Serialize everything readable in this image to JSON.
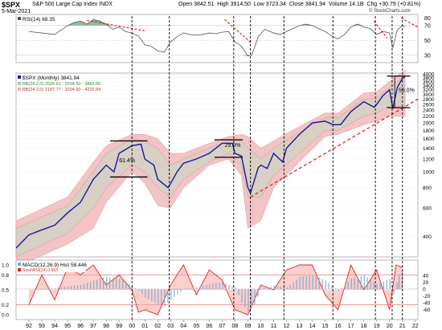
{
  "header": {
    "symbol": "$SPX",
    "name": "S&P 500 Large Cap Index",
    "exchange": "INDX",
    "date": "5-Mar-2021",
    "open_label": "Open",
    "open": "3842.51",
    "high_label": "High",
    "high": "3914.50",
    "low_label": "Low",
    "low": "3723.34",
    "close_label": "Close",
    "close": "3841.94",
    "volume_label": "Volume",
    "volume": "14.1B",
    "chg_label": "Chg",
    "chg": "+30.79 (+0.81%)",
    "watermark": "© StockCharts.com"
  },
  "colors": {
    "price": "#1a1a9c",
    "bb_fill": "#d8cfc5",
    "bb_edge": "#f2c4c6",
    "bb_line": "#e07b84",
    "trend_red": "#e0261c",
    "rsi_fill": "#7fb08a",
    "macd_hist": "#79a8d0",
    "stoch": "#e0261c",
    "stoch_fill": "#f6a7a3"
  },
  "chart_data": [
    {
      "type": "line",
      "panel": "RSI",
      "legend": "RSI(14) 68.35",
      "x_unit": "year",
      "series": [
        {
          "name": "RSI(14)",
          "x": [
            1992,
            1993,
            1994,
            1995,
            1995.5,
            1996,
            1996.5,
            1997,
            1997.5,
            1998,
            1998.5,
            1999,
            1999.5,
            2000,
            2000.5,
            2001,
            2001.5,
            2002,
            2002.5,
            2003,
            2003.5,
            2004,
            2004.5,
            2005,
            2005.5,
            2006,
            2006.5,
            2007,
            2007.5,
            2008,
            2008.5,
            2009,
            2009.3,
            2009.8,
            2010.3,
            2011,
            2011.5,
            2012,
            2013,
            2013.5,
            2014,
            2014.5,
            2015,
            2015.5,
            2016,
            2016.5,
            2017,
            2017.5,
            2018,
            2018.5,
            2019,
            2019.5,
            2020,
            2020.25,
            2020.6,
            2021,
            2021.2
          ],
          "values": [
            62,
            60,
            58,
            70,
            74,
            76,
            72,
            78,
            76,
            72,
            65,
            68,
            62,
            60,
            56,
            44,
            42,
            36,
            34,
            48,
            55,
            60,
            58,
            57,
            58,
            60,
            59,
            61,
            62,
            48,
            42,
            29,
            30,
            55,
            65,
            60,
            58,
            62,
            70,
            72,
            70,
            66,
            62,
            56,
            52,
            58,
            68,
            72,
            68,
            66,
            58,
            62,
            60,
            40,
            64,
            70,
            68
          ]
        }
      ],
      "ticks": [
        30,
        50,
        70,
        80
      ]
    },
    {
      "type": "line",
      "panel": "Price",
      "legend": "$SPX (Monthly) 3841.94",
      "bb_legend_1": "BB(24,2.0) 2526.61 - 3204.30 - 3882.00",
      "bb_legend_2": "BB(24,3.0) 2187.77 - 3204.30 - 4220.84",
      "annotations": [
        "61.4%",
        "29.0%",
        "56.0%"
      ],
      "x_unit": "year",
      "series": [
        {
          "name": "$SPX (Monthly)",
          "x": [
            1991.0,
            1992,
            1993,
            1994,
            1995,
            1996,
            1997,
            1998,
            1998.6,
            1999,
            2000,
            2000.7,
            2001,
            2001.7,
            2002,
            2002.8,
            2003,
            2003.5,
            2004,
            2005,
            2006,
            2007,
            2007.8,
            2008,
            2008.5,
            2009.0,
            2009.2,
            2009.8,
            2010,
            2010.5,
            2011,
            2011.7,
            2012,
            2013,
            2014,
            2015,
            2015.6,
            2016,
            2016.2,
            2017,
            2018,
            2018.8,
            2019,
            2019.5,
            2020,
            2020.25,
            2020.6,
            2021,
            2021.2
          ],
          "values": [
            340,
            410,
            440,
            470,
            560,
            650,
            900,
            1100,
            1000,
            1300,
            1450,
            1480,
            1200,
            1100,
            900,
            800,
            850,
            1000,
            1130,
            1200,
            1300,
            1500,
            1500,
            1300,
            1250,
            800,
            740,
            1060,
            1100,
            1050,
            1300,
            1150,
            1400,
            1700,
            2000,
            2050,
            1950,
            1950,
            1950,
            2350,
            2700,
            2500,
            2600,
            2950,
            3200,
            2450,
            3300,
            3750,
            3840
          ]
        },
        {
          "name": "BB(24,2.0) upper",
          "x": [
            1991,
            1995,
            1997,
            1998,
            2000,
            2001,
            2002,
            2003,
            2004,
            2006,
            2007.5,
            2008.5,
            2009,
            2010,
            2011,
            2013,
            2015,
            2016,
            2018,
            2019,
            2020,
            2021.2
          ],
          "values": [
            450,
            620,
            1000,
            1300,
            1600,
            1550,
            1400,
            1100,
            1200,
            1400,
            1560,
            1550,
            1400,
            1200,
            1400,
            1750,
            2150,
            2150,
            2800,
            2850,
            3300,
            3880
          ]
        },
        {
          "name": "BB(24,2.0) lower",
          "x": [
            1991,
            1995,
            1997,
            1998,
            2000,
            2001,
            2002,
            2003,
            2004,
            2006,
            2007.5,
            2008.5,
            2009,
            2010,
            2011,
            2013,
            2015,
            2016,
            2018,
            2019,
            2020,
            2021.2
          ],
          "values": [
            300,
            420,
            600,
            800,
            1100,
            1000,
            800,
            700,
            900,
            1150,
            1300,
            1100,
            700,
            700,
            950,
            1300,
            1800,
            1800,
            2200,
            2300,
            2550,
            2530
          ]
        },
        {
          "name": "BB(24,3.0) upper",
          "x": [
            1991,
            1995,
            1997,
            1998,
            2000,
            2001,
            2002,
            2003,
            2004,
            2006,
            2007.5,
            2008.5,
            2009,
            2010,
            2011,
            2013,
            2015,
            2016,
            2018,
            2019,
            2020,
            2021.2
          ],
          "values": [
            500,
            700,
            1150,
            1450,
            1700,
            1700,
            1600,
            1300,
            1300,
            1500,
            1650,
            1700,
            1650,
            1400,
            1550,
            1900,
            2300,
            2300,
            3050,
            3100,
            3600,
            4220
          ]
        },
        {
          "name": "BB(24,3.0) lower",
          "x": [
            1991,
            1995,
            1997,
            1998,
            2000,
            2001,
            2002,
            2003,
            2004,
            2006,
            2007.5,
            2008.5,
            2009,
            2010,
            2011,
            2013,
            2015,
            2016,
            2018,
            2019,
            2020,
            2021.2
          ],
          "values": [
            260,
            360,
            450,
            650,
            1000,
            850,
            620,
            600,
            800,
            1100,
            1200,
            950,
            450,
            500,
            800,
            1150,
            1650,
            1700,
            1950,
            2050,
            2200,
            2190
          ]
        }
      ],
      "ticks": [
        400,
        600,
        800,
        1000,
        1200,
        1400,
        1600,
        1800,
        2000,
        2200,
        2400,
        2600,
        2800,
        3000,
        3200,
        3400,
        3600,
        3800,
        4000
      ],
      "ylim": [
        300,
        4050
      ]
    },
    {
      "type": "bar",
      "panel": "MACD",
      "legend_macd": "MACD(12,26,9) Hist 58.446",
      "legend_stoch": "StochRSI(24) 0.953",
      "x_unit": "year",
      "series": [
        {
          "name": "MACD Hist",
          "x": [
            1993,
            1994,
            1995,
            1996,
            1997,
            1998,
            1999,
            2000,
            2000.5,
            2001,
            2002,
            2002.5,
            2003,
            2004,
            2005,
            2006,
            2007,
            2008,
            2008.5,
            2009,
            2009.5,
            2010,
            2011,
            2012,
            2013,
            2014,
            2015,
            2016,
            2017,
            2018,
            2019,
            2020,
            2020.3,
            2020.7,
            2021
          ],
          "values": [
            1,
            2,
            8,
            12,
            25,
            35,
            30,
            10,
            -5,
            -25,
            -45,
            -50,
            -30,
            0,
            5,
            15,
            20,
            5,
            -40,
            -65,
            -45,
            0,
            10,
            5,
            35,
            40,
            25,
            -5,
            30,
            40,
            15,
            30,
            -15,
            40,
            58
          ]
        },
        {
          "name": "StochRSI(24)",
          "x": [
            1992,
            1993,
            1994,
            1995,
            1996,
            1997,
            1998,
            1999,
            2000,
            2000.5,
            2001,
            2002,
            2003,
            2004,
            2005,
            2006,
            2007,
            2008,
            2009,
            2010,
            2011,
            2012,
            2013,
            2014,
            2015,
            2016,
            2017,
            2018,
            2019,
            2020,
            2020.5,
            2021
          ],
          "values": [
            0.2,
            0.8,
            0.3,
            0.95,
            0.8,
            1.0,
            0.6,
            0.8,
            0.5,
            0.05,
            0.1,
            0.0,
            0.6,
            1.0,
            0.4,
            0.9,
            0.7,
            0.1,
            0.0,
            0.6,
            0.5,
            0.9,
            1.0,
            1.0,
            0.4,
            0.1,
            1.0,
            0.5,
            0.9,
            0.1,
            1.0,
            0.95
          ]
        }
      ],
      "ticks": [
        "1.0",
        "0.8",
        "0.5",
        "0.2",
        "0.0"
      ],
      "ticks_right": [
        40,
        20,
        0,
        -20,
        -40,
        -60
      ]
    }
  ],
  "x_axis": {
    "labels": [
      "92",
      "93",
      "94",
      "95",
      "96",
      "97",
      "98",
      "99",
      "00",
      "01",
      "02",
      "03",
      "04",
      "05",
      "06",
      "07",
      "08",
      "09",
      "10",
      "11",
      "12",
      "13",
      "14",
      "15",
      "16",
      "17",
      "18",
      "19",
      "20",
      "21",
      "22"
    ]
  }
}
